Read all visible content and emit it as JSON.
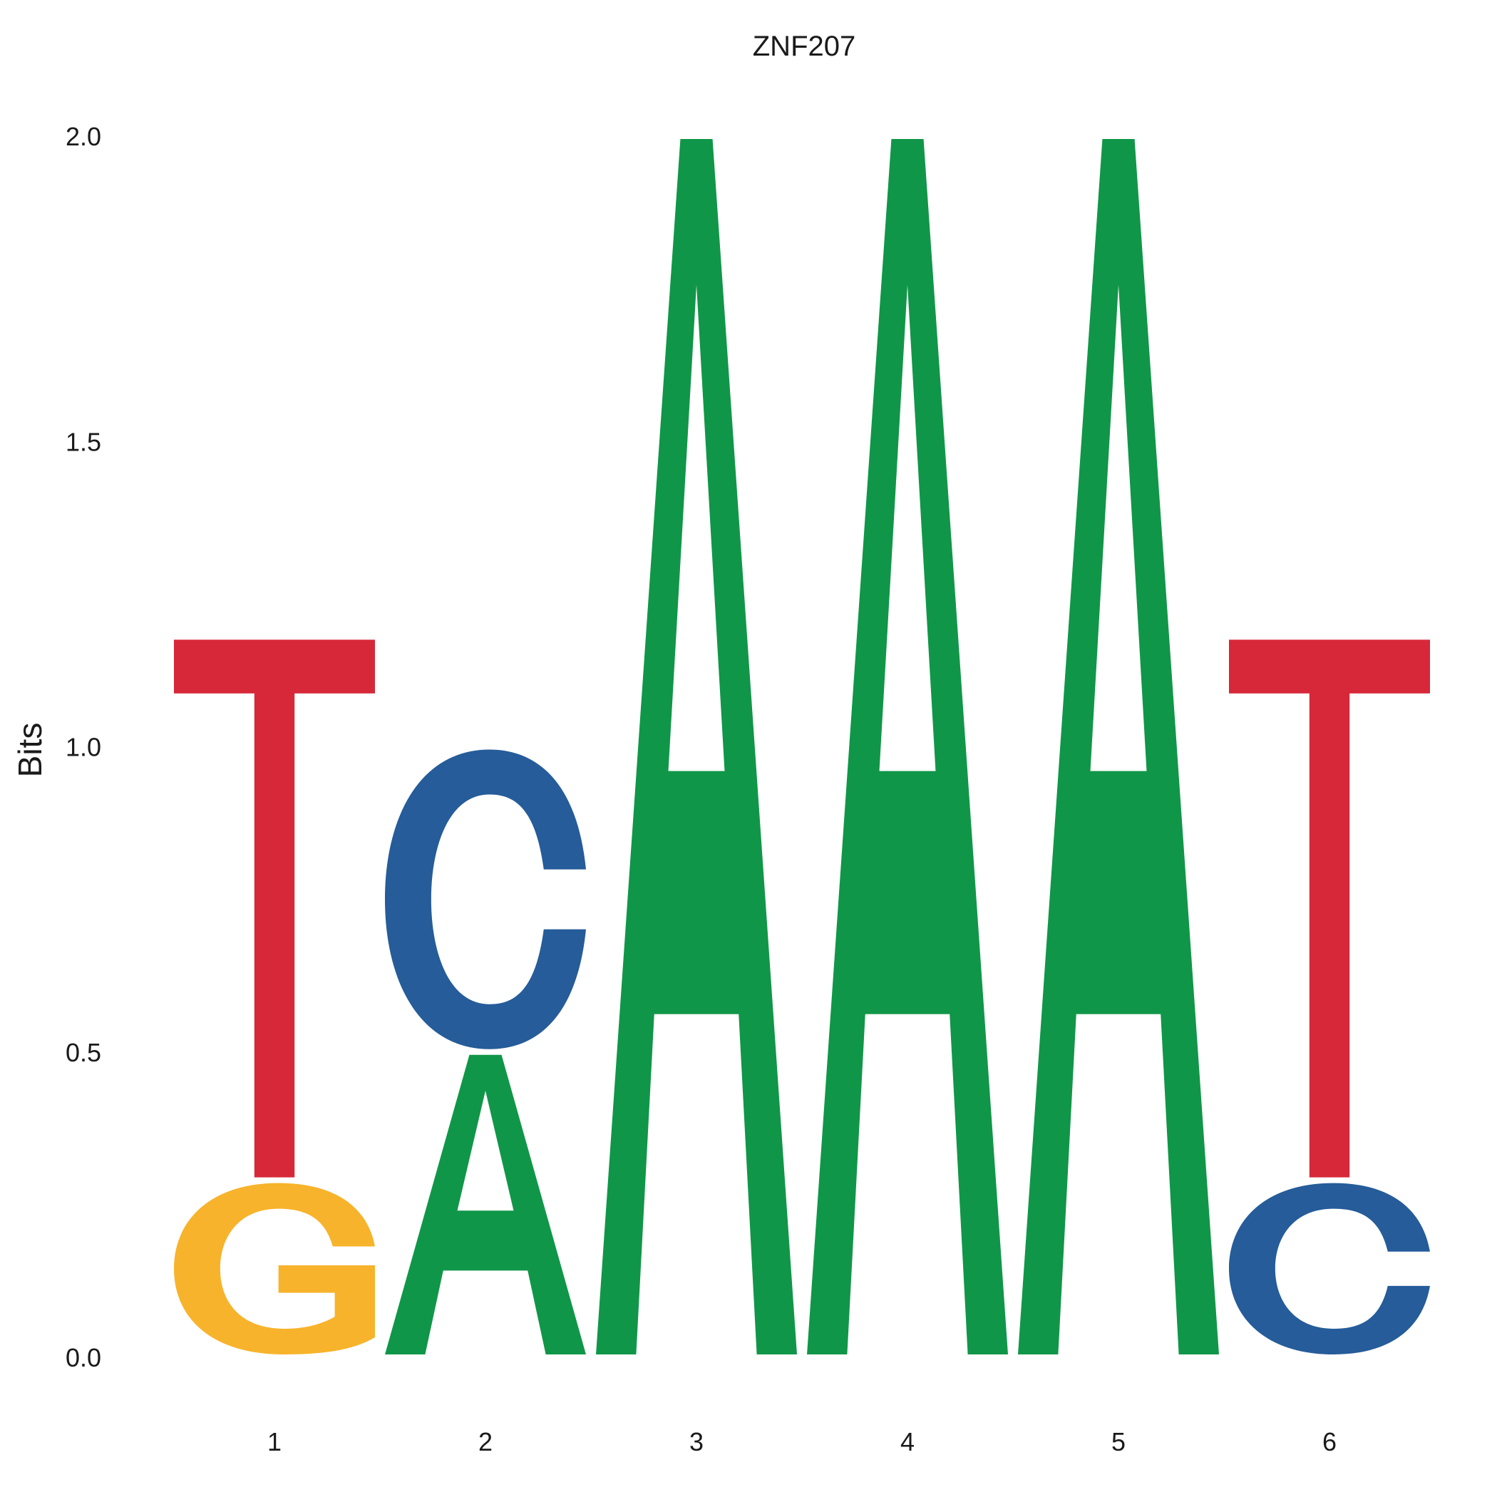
{
  "chart_data": {
    "type": "sequence_logo",
    "title": "ZNF207",
    "ylabel": "Bits",
    "xlabel": "",
    "ylim": [
      0,
      2
    ],
    "y_ticks": [
      "0.0",
      "0.5",
      "1.0",
      "1.5",
      "2.0"
    ],
    "x_ticks": [
      "1",
      "2",
      "3",
      "4",
      "5",
      "6"
    ],
    "grid": false,
    "legend": "none",
    "colors": {
      "A": "#109648",
      "C": "#255c99",
      "G": "#f7b32b",
      "T": "#d62839"
    },
    "positions": [
      {
        "position": "1",
        "letters": [
          {
            "letter": "G",
            "bits": 0.29
          },
          {
            "letter": "T",
            "bits": 0.89
          }
        ]
      },
      {
        "position": "2",
        "letters": [
          {
            "letter": "A",
            "bits": 0.5
          },
          {
            "letter": "C",
            "bits": 0.5
          }
        ]
      },
      {
        "position": "3",
        "letters": [
          {
            "letter": "A",
            "bits": 2.0
          }
        ]
      },
      {
        "position": "4",
        "letters": [
          {
            "letter": "A",
            "bits": 2.0
          }
        ]
      },
      {
        "position": "5",
        "letters": [
          {
            "letter": "A",
            "bits": 2.0
          }
        ]
      },
      {
        "position": "6",
        "letters": [
          {
            "letter": "C",
            "bits": 0.29
          },
          {
            "letter": "T",
            "bits": 0.89
          }
        ]
      }
    ]
  }
}
